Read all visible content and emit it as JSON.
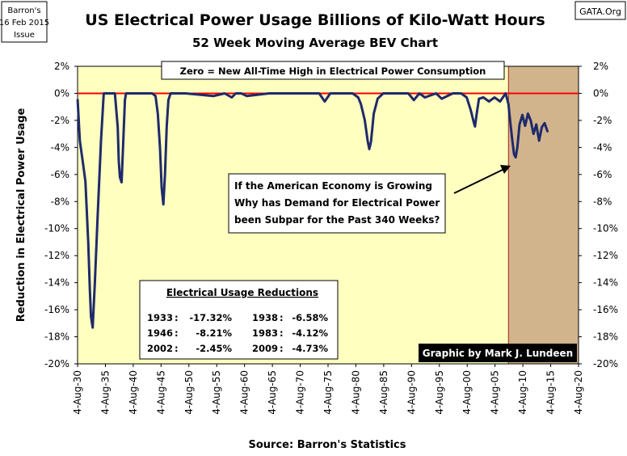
{
  "header": {
    "source_box": [
      "Barron's",
      "16 Feb 2015",
      "Issue"
    ],
    "credit_box": "GATA.Org"
  },
  "chart_data": {
    "type": "line",
    "title": "US Electrical Power Usage Billions of Kilo-Watt Hours",
    "subtitle": "52 Week Moving Average BEV Chart",
    "ylabel": "Reduction in Electrical Power Usage",
    "xlabel": "Source: Barron's Statistics",
    "ylim": [
      -20,
      2
    ],
    "xlim": [
      1930.59,
      2020.59
    ],
    "y_ticks": [
      {
        "value": 2,
        "label": "2%"
      },
      {
        "value": 0,
        "label": "0%"
      },
      {
        "value": -2,
        "label": "-2%"
      },
      {
        "value": -4,
        "label": "-4%"
      },
      {
        "value": -6,
        "label": "-6%"
      },
      {
        "value": -8,
        "label": "-8%"
      },
      {
        "value": -10,
        "label": "-10%"
      },
      {
        "value": -12,
        "label": "-12%"
      },
      {
        "value": -14,
        "label": "-14%"
      },
      {
        "value": -16,
        "label": "-16%"
      },
      {
        "value": -18,
        "label": "-18%"
      },
      {
        "value": -20,
        "label": "-20%"
      }
    ],
    "x_ticks": [
      "4-Aug-30",
      "4-Aug-35",
      "4-Aug-40",
      "4-Aug-45",
      "4-Aug-50",
      "4-Aug-55",
      "4-Aug-60",
      "4-Aug-65",
      "4-Aug-70",
      "4-Aug-75",
      "4-Aug-80",
      "4-Aug-85",
      "4-Aug-90",
      "4-Aug-95",
      "4-Aug-00",
      "4-Aug-05",
      "4-Aug-10",
      "4-Aug-15",
      "4-Aug-20"
    ],
    "grid": false,
    "plot_background": "#FFFFC0",
    "highlight_region": {
      "x_from": 2008.0,
      "x_to": 2020.59,
      "color": "#D2B48C"
    },
    "zero_line_color": "#FF0000",
    "series": [
      {
        "color": "#1F2A6B",
        "x": [
          1930.6,
          1931.0,
          1931.5,
          1932.0,
          1932.5,
          1932.8,
          1933.0,
          1933.3,
          1933.7,
          1934.2,
          1934.8,
          1935.3,
          1935.8,
          1936.3,
          1936.8,
          1937.3,
          1937.8,
          1938.0,
          1938.2,
          1938.5,
          1938.8,
          1939.1,
          1939.3,
          1940.0,
          1941.0,
          1942.0,
          1943.0,
          1944.0,
          1944.6,
          1945.0,
          1945.4,
          1945.7,
          1946.0,
          1946.3,
          1946.6,
          1946.9,
          1947.3,
          1948.0,
          1950.0,
          1955.0,
          1957.0,
          1958.3,
          1959.0,
          1960.0,
          1961.0,
          1965.0,
          1970.0,
          1974.0,
          1975.0,
          1976.0,
          1980.0,
          1981.0,
          1981.5,
          1982.2,
          1982.7,
          1983.0,
          1983.3,
          1983.8,
          1984.5,
          1985.5,
          1987.0,
          1990.0,
          1991.0,
          1992.0,
          1993.0,
          1995.0,
          1996.0,
          1998.0,
          1999.5,
          2000.5,
          2001.2,
          2001.8,
          2002.0,
          2002.3,
          2002.7,
          2003.5,
          2004.5,
          2005.5,
          2006.5,
          2007.5,
          2008.0,
          2008.3,
          2008.7,
          2009.0,
          2009.3,
          2009.6,
          2010.0,
          2010.5,
          2011.0,
          2011.5,
          2012.0,
          2012.5,
          2013.0,
          2013.5,
          2014.0,
          2014.5,
          2015.0
        ],
        "values": [
          -0.5,
          -3.5,
          -5.0,
          -6.5,
          -11.0,
          -14.5,
          -16.5,
          -17.32,
          -14.0,
          -9.0,
          -3.5,
          0.0,
          0.0,
          0.0,
          0.0,
          0.0,
          -2.5,
          -5.0,
          -6.2,
          -6.58,
          -3.5,
          -0.5,
          0.0,
          0.0,
          0.0,
          0.0,
          0.0,
          0.0,
          -0.2,
          -1.5,
          -4.0,
          -7.0,
          -8.21,
          -6.0,
          -2.5,
          -0.5,
          0.0,
          0.0,
          0.0,
          -0.2,
          0.0,
          -0.3,
          0.0,
          0.0,
          -0.2,
          0.0,
          0.0,
          0.0,
          -0.6,
          0.0,
          0.0,
          -0.3,
          -0.8,
          -2.0,
          -3.5,
          -4.12,
          -3.6,
          -1.5,
          -0.4,
          0.0,
          0.0,
          0.0,
          -0.5,
          0.0,
          -0.3,
          0.0,
          -0.4,
          0.0,
          0.0,
          -0.3,
          -1.2,
          -2.2,
          -2.45,
          -1.5,
          -0.4,
          -0.3,
          -0.6,
          -0.3,
          -0.6,
          0.0,
          -0.8,
          -2.0,
          -3.5,
          -4.5,
          -4.73,
          -4.0,
          -2.3,
          -1.6,
          -2.4,
          -1.5,
          -2.0,
          -3.0,
          -2.3,
          -3.5,
          -2.5,
          -2.2,
          -2.8
        ]
      }
    ],
    "annotations": {
      "top_box": "Zero = New All-Time High in Electrical Power Consumption",
      "question_box": [
        "If the American Economy is Growing",
        "Why has Demand for Electrical Power",
        "been Subpar for the Past 340 Weeks?"
      ],
      "table_title": "Electrical Usage Reductions",
      "table_rows": [
        {
          "left_year": "1933",
          "left_value": "-17.32%",
          "right_year": "1938",
          "right_value": "-6.58%"
        },
        {
          "left_year": "1946",
          "left_value": "-8.21%",
          "right_year": "1983",
          "right_value": "-4.12%"
        },
        {
          "left_year": "2002",
          "left_value": "-2.45%",
          "right_year": "2009",
          "right_value": "-4.73%"
        }
      ],
      "credit": "Graphic by Mark J. Lundeen"
    }
  }
}
